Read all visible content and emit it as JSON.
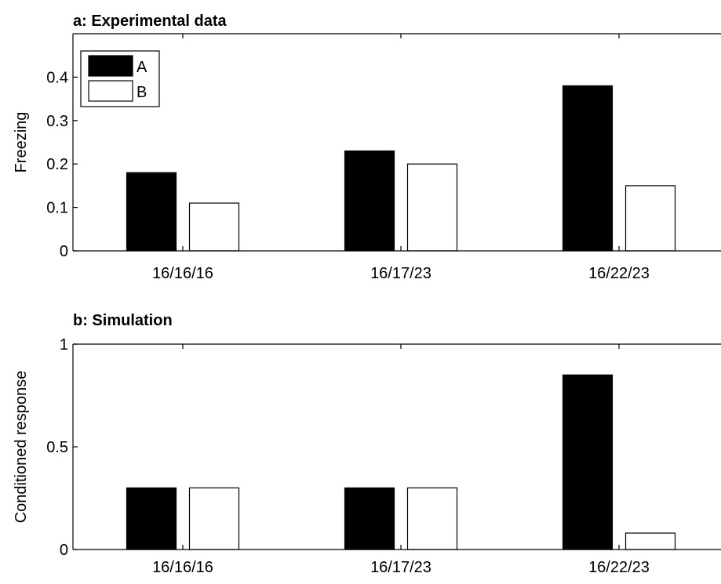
{
  "chart_data": [
    {
      "type": "bar",
      "title": "a: Experimental data",
      "xlabel": "",
      "ylabel": "Freezing",
      "categories": [
        "16/16/16",
        "16/17/23",
        "16/22/23"
      ],
      "series": [
        {
          "name": "A",
          "values": [
            0.18,
            0.23,
            0.38
          ],
          "color": "#000000"
        },
        {
          "name": "B",
          "values": [
            0.11,
            0.2,
            0.15
          ],
          "color": "#ffffff"
        }
      ],
      "ylim": [
        0,
        0.5
      ],
      "yticks": [
        0,
        0.1,
        0.2,
        0.3,
        0.4
      ],
      "ytick_labels": [
        "0",
        "0.1",
        "0.2",
        "0.3",
        "0.4"
      ],
      "legend": "top-left",
      "grid": false
    },
    {
      "type": "bar",
      "title": "b: Simulation",
      "xlabel": "",
      "ylabel": "Conditioned response",
      "categories": [
        "16/16/16",
        "16/17/23",
        "16/22/23"
      ],
      "series": [
        {
          "values": [
            0.3,
            0.3,
            0.85
          ],
          "color": "#000000"
        },
        {
          "values": [
            0.3,
            0.3,
            0.08
          ],
          "color": "#ffffff"
        }
      ],
      "ylim": [
        0,
        1
      ],
      "yticks": [
        0,
        0.5,
        1
      ],
      "ytick_labels": [
        "0",
        "0.5",
        "1"
      ],
      "legend": "none",
      "grid": false
    }
  ]
}
